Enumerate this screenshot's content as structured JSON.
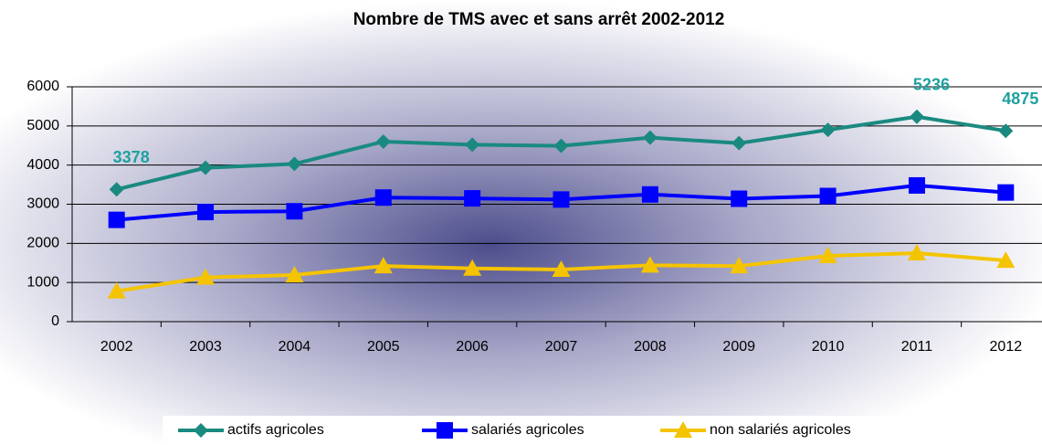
{
  "chart_data": {
    "type": "line",
    "title": "Nombre de TMS avec et sans arrêt  2002-2012",
    "categories": [
      "2002",
      "2003",
      "2004",
      "2005",
      "2006",
      "2007",
      "2008",
      "2009",
      "2010",
      "2011",
      "2012"
    ],
    "ylim": [
      0,
      6000
    ],
    "yticks": [
      0,
      1000,
      2000,
      3000,
      4000,
      5000,
      6000
    ],
    "grid": true,
    "legend": "bottom",
    "series": [
      {
        "name": "actifs agricoles",
        "color": "#1a8a80",
        "marker": "diamond",
        "values": [
          3378,
          3930,
          4030,
          4600,
          4520,
          4490,
          4700,
          4560,
          4900,
          5236,
          4875
        ],
        "value_labels": [
          "3378",
          null,
          null,
          null,
          null,
          null,
          null,
          null,
          null,
          "5236",
          "4875"
        ]
      },
      {
        "name": "salariés agricoles",
        "color": "#0000ff",
        "marker": "square",
        "values": [
          2600,
          2800,
          2820,
          3170,
          3150,
          3120,
          3250,
          3140,
          3210,
          3480,
          3300
        ]
      },
      {
        "name": "non salariés agricoles",
        "color": "#f5c400",
        "marker": "triangle",
        "values": [
          780,
          1130,
          1190,
          1420,
          1360,
          1330,
          1440,
          1420,
          1680,
          1750,
          1560
        ]
      }
    ]
  }
}
